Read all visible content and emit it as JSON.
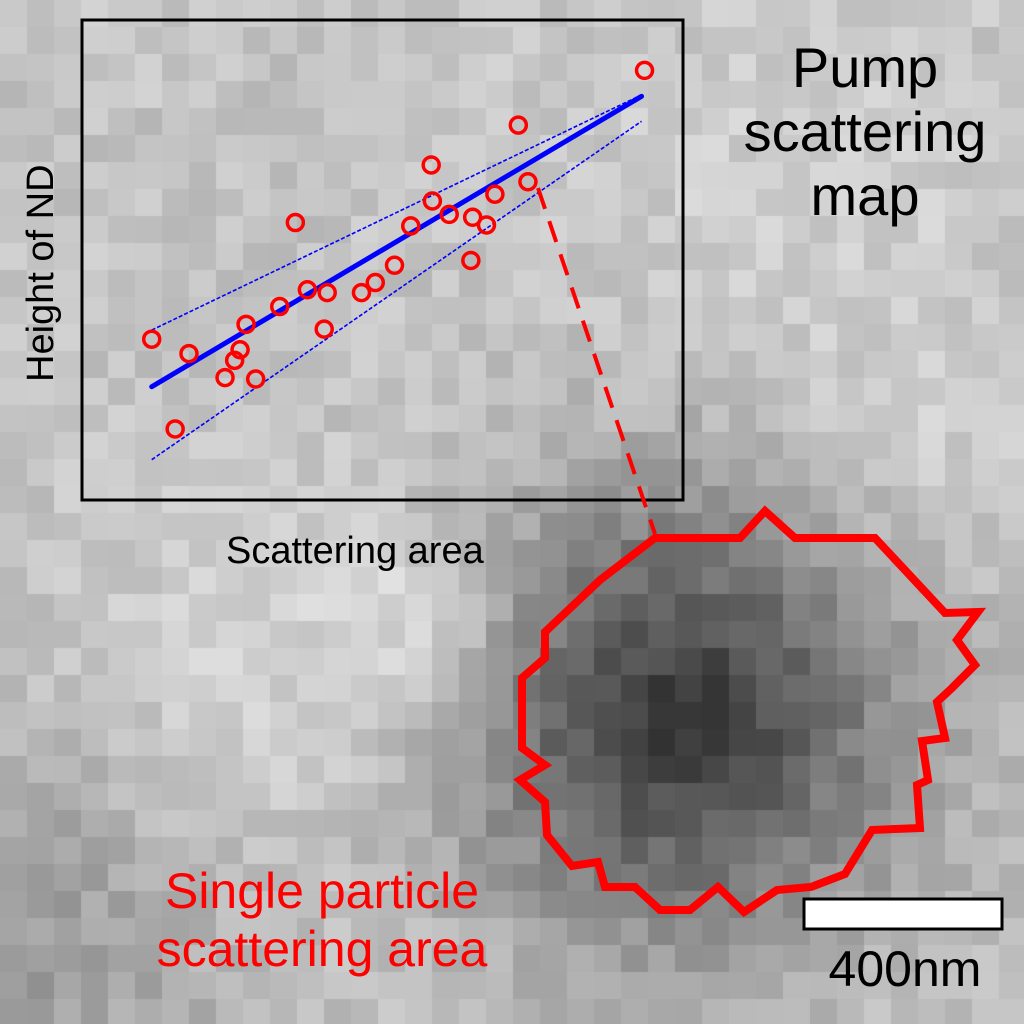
{
  "map": {
    "title_lines": [
      "Pump",
      "scattering",
      "map"
    ]
  },
  "particle": {
    "label_lines": [
      "Single particle",
      "scattering area"
    ],
    "outline_color": "#ff0000"
  },
  "scale_bar": {
    "label": "400nm"
  },
  "chart_data": {
    "type": "scatter",
    "xlabel": "Scattering area",
    "ylabel": "Height of ND",
    "ticks_shown": false,
    "grid": false,
    "xlim": [
      0,
      100
    ],
    "ylim": [
      0,
      100
    ],
    "marker_color": "#ff0000",
    "fit_color": "#0000ff",
    "points": [
      {
        "x": 11.6,
        "y": 33.5
      },
      {
        "x": 17.8,
        "y": 30.5
      },
      {
        "x": 15.5,
        "y": 14.8
      },
      {
        "x": 23.8,
        "y": 25.5
      },
      {
        "x": 25.4,
        "y": 29.1
      },
      {
        "x": 26.3,
        "y": 31.3
      },
      {
        "x": 27.3,
        "y": 36.6
      },
      {
        "x": 28.9,
        "y": 25.2
      },
      {
        "x": 32.9,
        "y": 40.3
      },
      {
        "x": 35.5,
        "y": 57.8
      },
      {
        "x": 37.5,
        "y": 43.8
      },
      {
        "x": 40.8,
        "y": 43.2
      },
      {
        "x": 40.3,
        "y": 35.6
      },
      {
        "x": 46.5,
        "y": 43.2
      },
      {
        "x": 48.8,
        "y": 45.3
      },
      {
        "x": 52.0,
        "y": 48.9
      },
      {
        "x": 54.7,
        "y": 57.1
      },
      {
        "x": 58.3,
        "y": 62.3
      },
      {
        "x": 58.1,
        "y": 69.8
      },
      {
        "x": 61.1,
        "y": 59.5
      },
      {
        "x": 64.7,
        "y": 49.9
      },
      {
        "x": 65.0,
        "y": 58.9
      },
      {
        "x": 67.3,
        "y": 57.3
      },
      {
        "x": 68.7,
        "y": 63.7
      },
      {
        "x": 72.6,
        "y": 78.1
      },
      {
        "x": 74.2,
        "y": 66.3
      },
      {
        "x": 93.6,
        "y": 89.5
      }
    ],
    "fit_line": {
      "x": [
        11.6,
        93.1
      ],
      "y": [
        23.6,
        84.1
      ]
    },
    "confidence_upper": {
      "x": 11.6,
      "x2": 93.1,
      "y": 35.4,
      "y2": 84.4
    },
    "confidence_lower": {
      "x": 11.6,
      "x2": 93.1,
      "y": 8.4,
      "y2": 78.9
    }
  }
}
